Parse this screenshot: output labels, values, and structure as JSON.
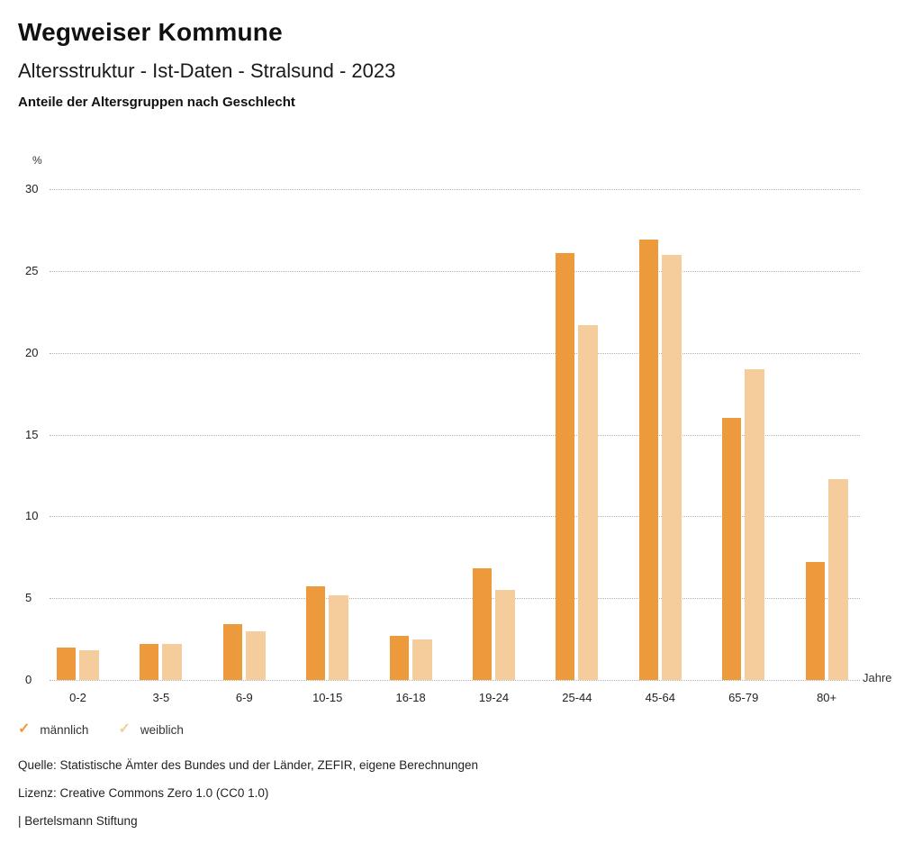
{
  "header": {
    "title": "Wegweiser Kommune",
    "subtitle": "Altersstruktur - Ist-Daten - Stralsund - 2023",
    "heading": "Anteile der Altersgruppen nach Geschlecht"
  },
  "chart_data": {
    "type": "bar",
    "title": "Anteile der Altersgruppen nach Geschlecht",
    "categories": [
      "0-2",
      "3-5",
      "6-9",
      "10-15",
      "16-18",
      "19-24",
      "25-44",
      "45-64",
      "65-79",
      "80+"
    ],
    "series": [
      {
        "name": "männlich",
        "color": "#EC9A3C",
        "values": [
          2.0,
          2.2,
          3.4,
          5.7,
          2.7,
          6.8,
          26.1,
          26.9,
          16.0,
          7.2
        ]
      },
      {
        "name": "weiblich",
        "color": "#F5CC9B",
        "values": [
          1.8,
          2.2,
          3.0,
          5.2,
          2.5,
          5.5,
          21.7,
          26.0,
          19.0,
          12.3
        ]
      }
    ],
    "ylabel": "%",
    "xlabel": "Jahre",
    "ylim": [
      0,
      30
    ],
    "yticks": [
      0,
      5,
      10,
      15,
      20,
      25,
      30
    ],
    "grid": "horizontal-dotted",
    "legend_position": "bottom-left",
    "legend_marker": "check"
  },
  "footer": {
    "source": "Quelle: Statistische Ämter des Bundes und der Länder, ZEFIR, eigene Berechnungen",
    "license": "Lizenz: Creative Commons Zero 1.0 (CC0 1.0)",
    "attribution": "| Bertelsmann Stiftung"
  }
}
